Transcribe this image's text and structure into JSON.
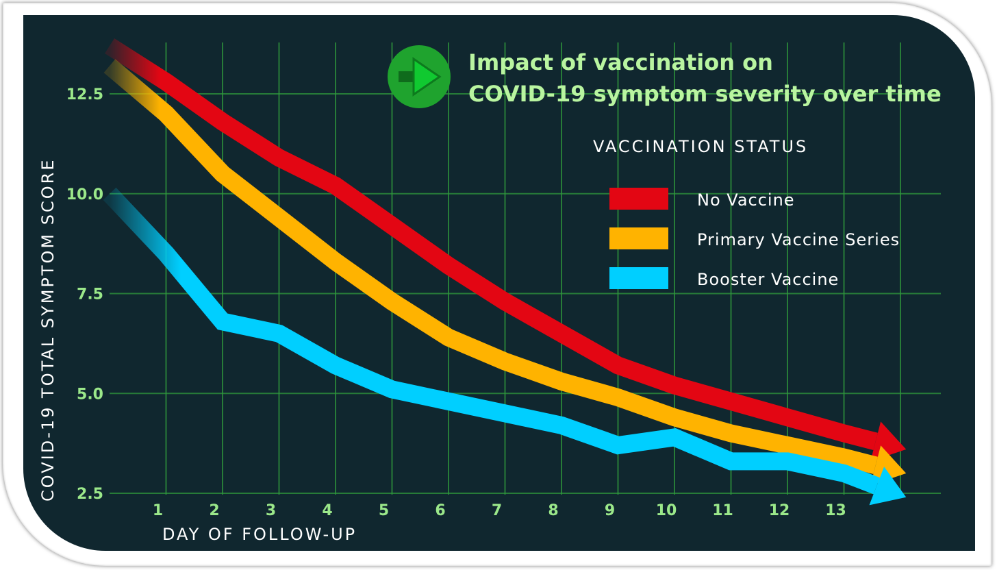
{
  "colors": {
    "background": "#10272f",
    "grid": "#2f9a3c",
    "title": "#b9f5a0",
    "tick_labels": "#9be88a",
    "no_vaccine": "#e30613",
    "primary_series": "#ffb300",
    "booster": "#00cfff",
    "badge": "#1fa32e"
  },
  "icons": {
    "title_badge": "arrow-right-icon"
  },
  "chart_data": {
    "type": "line",
    "title": "Impact of vaccination on COVID-19 symptom severity over time",
    "title_lines": [
      "Impact of vaccination on",
      "COVID-19 symptom severity over time"
    ],
    "xlabel": "DAY OF FOLLOW-UP",
    "ylabel": "COVID-19 TOTAL SYMPTOM SCORE",
    "legend_title": "VACCINATION STATUS",
    "legend_position": "top-right",
    "grid": true,
    "xlim": [
      0,
      14.5
    ],
    "ylim": [
      2.5,
      13.5
    ],
    "x_ticks": [
      1,
      2,
      3,
      4,
      5,
      6,
      7,
      8,
      9,
      10,
      11,
      12,
      13
    ],
    "y_ticks": [
      "12.5",
      "10.0",
      "7.5",
      "5.0",
      "2.5"
    ],
    "y_tick_values": [
      12.5,
      10.0,
      7.5,
      5.0,
      2.5
    ],
    "series": [
      {
        "name": "No Vaccine",
        "color": "#e30613",
        "x": [
          0,
          1,
          2,
          3,
          4,
          5,
          6,
          7,
          8,
          9,
          10,
          11,
          12,
          13,
          14.1
        ],
        "values": [
          13.7,
          12.8,
          11.8,
          10.9,
          10.2,
          9.2,
          8.2,
          7.3,
          6.5,
          5.7,
          5.2,
          4.8,
          4.4,
          4.0,
          3.6
        ]
      },
      {
        "name": "Primary Vaccine Series",
        "color": "#ffb300",
        "x": [
          0,
          1,
          2,
          3,
          4,
          5,
          6,
          7,
          8,
          9,
          10,
          11,
          12,
          13,
          14.1
        ],
        "values": [
          13.2,
          12.0,
          10.5,
          9.4,
          8.3,
          7.3,
          6.4,
          5.8,
          5.3,
          4.9,
          4.4,
          4.0,
          3.7,
          3.4,
          3.0
        ]
      },
      {
        "name": "Booster Vaccine",
        "color": "#00cfff",
        "x": [
          0,
          1,
          2,
          3,
          4,
          5,
          6,
          7,
          8,
          9,
          10,
          11,
          12,
          13,
          14.1
        ],
        "values": [
          10.0,
          8.5,
          6.8,
          6.5,
          5.7,
          5.1,
          4.8,
          4.5,
          4.2,
          3.7,
          3.9,
          3.3,
          3.3,
          3.0,
          2.4
        ]
      }
    ]
  }
}
